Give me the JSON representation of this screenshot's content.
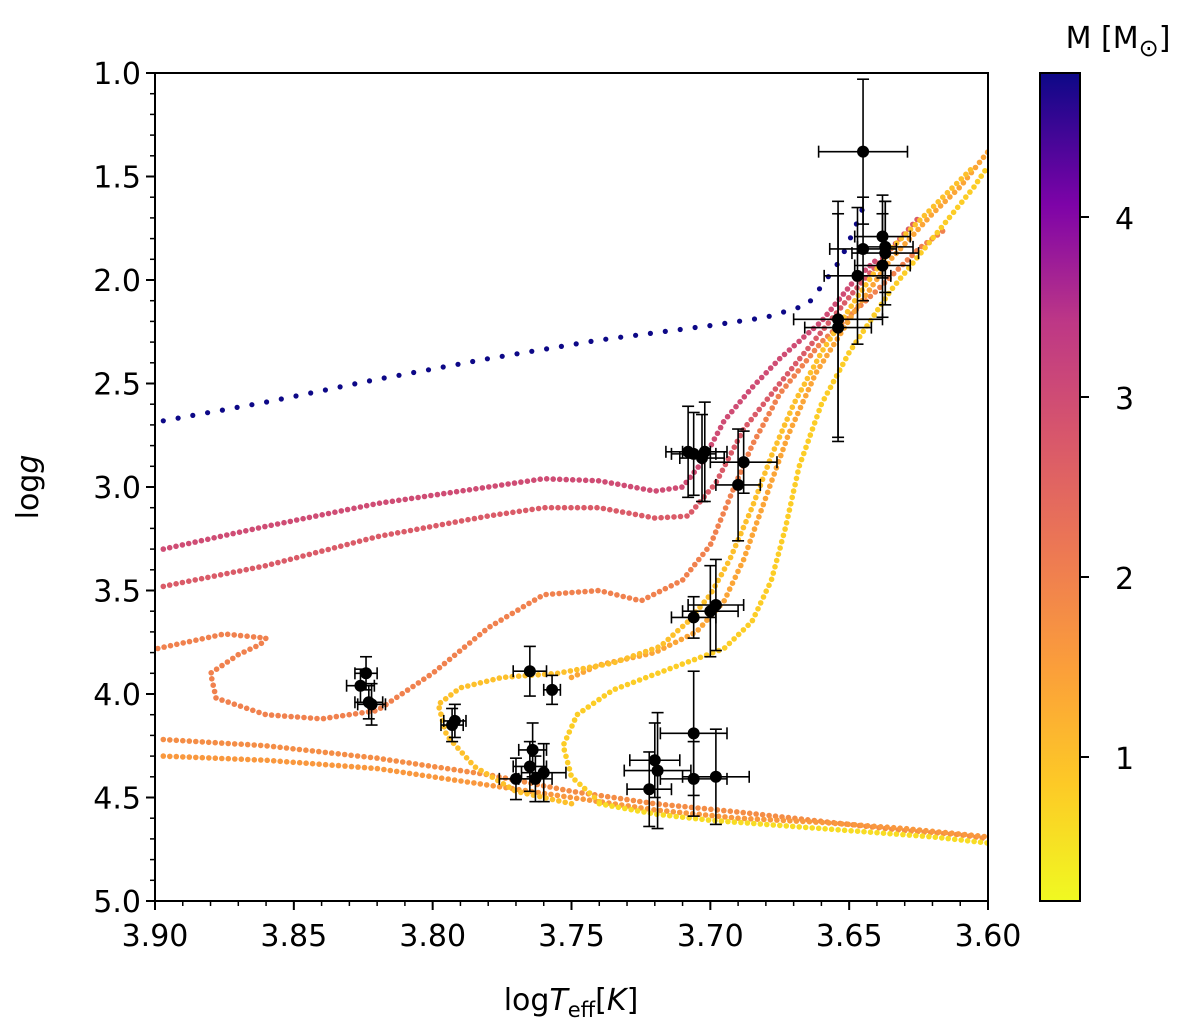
{
  "chart_data": {
    "type": "scatter",
    "title": "",
    "xlabel": "logT_eff[K]",
    "xlabel_parts": {
      "base": "log",
      "var": "T",
      "sub": "eff",
      "unit": "K"
    },
    "ylabel": "log g",
    "ylabel_parts": {
      "base": "log",
      "var": "g"
    },
    "xlim": [
      3.9,
      3.6
    ],
    "ylim": [
      1.0,
      5.0
    ],
    "x_axis_inverted": true,
    "y_axis_inverted": true,
    "x_ticks": [
      3.9,
      3.85,
      3.8,
      3.75,
      3.7,
      3.65,
      3.6
    ],
    "x_tick_labels": [
      "3.90",
      "3.85",
      "3.80",
      "3.75",
      "3.70",
      "3.65",
      "3.60"
    ],
    "y_ticks": [
      1.0,
      1.5,
      2.0,
      2.5,
      3.0,
      3.5,
      4.0,
      4.5,
      5.0
    ],
    "y_tick_labels": [
      "1.0",
      "1.5",
      "2.0",
      "2.5",
      "3.0",
      "3.5",
      "4.0",
      "4.5",
      "5.0"
    ],
    "grid": false,
    "colorbar": {
      "label": "M [M⊙]",
      "label_parts": {
        "text": "M [M",
        "symbol": "⊙",
        "close": "]"
      },
      "colormap": "plasma_r",
      "range": [
        0.2,
        4.8
      ],
      "ticks": [
        1,
        2,
        3,
        4
      ],
      "tick_labels": [
        "1",
        "2",
        "3",
        "4"
      ]
    },
    "tracks": [
      {
        "name": "track-4.8",
        "mass": 4.8,
        "points": [
          [
            3.897,
            2.68
          ],
          [
            3.86,
            2.59
          ],
          [
            3.82,
            2.48
          ],
          [
            3.78,
            2.38
          ],
          [
            3.74,
            2.29
          ],
          [
            3.7,
            2.22
          ],
          [
            3.68,
            2.18
          ],
          [
            3.665,
            2.12
          ],
          [
            3.66,
            2.03
          ],
          [
            3.653,
            1.9
          ],
          [
            3.648,
            1.75
          ],
          [
            3.645,
            1.65
          ]
        ]
      },
      {
        "name": "track-3.0",
        "mass": 3.0,
        "points": [
          [
            3.897,
            3.3
          ],
          [
            3.86,
            3.19
          ],
          [
            3.82,
            3.08
          ],
          [
            3.78,
            3.0
          ],
          [
            3.76,
            2.96
          ],
          [
            3.74,
            2.97
          ],
          [
            3.72,
            3.02
          ],
          [
            3.71,
            3.0
          ],
          [
            3.703,
            2.88
          ],
          [
            3.695,
            2.68
          ],
          [
            3.685,
            2.52
          ],
          [
            3.675,
            2.38
          ],
          [
            3.66,
            2.2
          ],
          [
            3.648,
            2.0
          ],
          [
            3.64,
            1.9
          ]
        ]
      },
      {
        "name": "track-2.7",
        "mass": 2.7,
        "points": [
          [
            3.897,
            3.48
          ],
          [
            3.86,
            3.38
          ],
          [
            3.82,
            3.24
          ],
          [
            3.78,
            3.14
          ],
          [
            3.76,
            3.1
          ],
          [
            3.74,
            3.1
          ],
          [
            3.72,
            3.15
          ],
          [
            3.708,
            3.14
          ],
          [
            3.698,
            2.98
          ],
          [
            3.688,
            2.72
          ],
          [
            3.675,
            2.5
          ],
          [
            3.66,
            2.25
          ],
          [
            3.648,
            2.05
          ],
          [
            3.635,
            1.85
          ],
          [
            3.625,
            1.7
          ]
        ]
      },
      {
        "name": "track-2.0",
        "mass": 2.0,
        "points": [
          [
            3.899,
            3.78
          ],
          [
            3.875,
            3.71
          ],
          [
            3.86,
            3.73
          ],
          [
            3.862,
            3.76
          ],
          [
            3.87,
            3.81
          ],
          [
            3.88,
            3.9
          ],
          [
            3.878,
            4.02
          ],
          [
            3.86,
            4.1
          ],
          [
            3.84,
            4.12
          ],
          [
            3.82,
            4.08
          ],
          [
            3.8,
            3.9
          ],
          [
            3.78,
            3.68
          ],
          [
            3.76,
            3.52
          ],
          [
            3.74,
            3.5
          ],
          [
            3.725,
            3.55
          ],
          [
            3.71,
            3.45
          ],
          [
            3.7,
            3.28
          ],
          [
            3.692,
            3.02
          ],
          [
            3.685,
            2.8
          ],
          [
            3.675,
            2.55
          ],
          [
            3.66,
            2.3
          ],
          [
            3.64,
            2.05
          ],
          [
            3.625,
            1.85
          ],
          [
            3.615,
            1.75
          ]
        ]
      },
      {
        "name": "track-1.4",
        "mass": 1.4,
        "points": [
          [
            3.75,
            3.92
          ],
          [
            3.74,
            3.86
          ],
          [
            3.72,
            3.8
          ],
          [
            3.705,
            3.7
          ],
          [
            3.695,
            3.55
          ],
          [
            3.688,
            3.35
          ],
          [
            3.68,
            3.05
          ],
          [
            3.672,
            2.75
          ],
          [
            3.662,
            2.45
          ],
          [
            3.648,
            2.15
          ],
          [
            3.635,
            1.9
          ],
          [
            3.62,
            1.68
          ],
          [
            3.61,
            1.55
          ],
          [
            3.6,
            1.38
          ]
        ]
      },
      {
        "name": "zams-1.8",
        "mass": 1.8,
        "points": [
          [
            3.897,
            4.22
          ],
          [
            3.86,
            4.25
          ],
          [
            3.82,
            4.31
          ],
          [
            3.78,
            4.39
          ],
          [
            3.75,
            4.47
          ],
          [
            3.72,
            4.53
          ],
          [
            3.69,
            4.57
          ],
          [
            3.67,
            4.6
          ],
          [
            3.65,
            4.63
          ],
          [
            3.63,
            4.66
          ],
          [
            3.61,
            4.68
          ],
          [
            3.6,
            4.7
          ]
        ]
      },
      {
        "name": "zams-1.6",
        "mass": 1.6,
        "points": [
          [
            3.897,
            4.3
          ],
          [
            3.86,
            4.32
          ],
          [
            3.82,
            4.36
          ],
          [
            3.78,
            4.44
          ],
          [
            3.75,
            4.5
          ],
          [
            3.72,
            4.56
          ],
          [
            3.69,
            4.6
          ],
          [
            3.66,
            4.62
          ],
          [
            3.63,
            4.65
          ],
          [
            3.6,
            4.69
          ]
        ]
      },
      {
        "name": "track-1.0",
        "mass": 1.0,
        "points": [
          [
            3.75,
            4.53
          ],
          [
            3.77,
            4.47
          ],
          [
            3.785,
            4.35
          ],
          [
            3.795,
            4.2
          ],
          [
            3.798,
            4.05
          ],
          [
            3.79,
            3.97
          ],
          [
            3.775,
            3.92
          ],
          [
            3.755,
            3.9
          ],
          [
            3.735,
            3.85
          ],
          [
            3.718,
            3.77
          ],
          [
            3.708,
            3.65
          ],
          [
            3.7,
            3.52
          ],
          [
            3.693,
            3.35
          ],
          [
            3.685,
            3.1
          ],
          [
            3.678,
            2.85
          ],
          [
            3.67,
            2.6
          ],
          [
            3.66,
            2.35
          ],
          [
            3.648,
            2.1
          ],
          [
            3.635,
            1.85
          ],
          [
            3.62,
            1.65
          ],
          [
            3.605,
            1.45
          ]
        ]
      },
      {
        "name": "track-0.8",
        "mass": 0.8,
        "points": [
          [
            3.74,
            4.52
          ],
          [
            3.75,
            4.4
          ],
          [
            3.753,
            4.25
          ],
          [
            3.748,
            4.1
          ],
          [
            3.735,
            3.98
          ],
          [
            3.715,
            3.88
          ],
          [
            3.695,
            3.78
          ],
          [
            3.685,
            3.65
          ],
          [
            3.678,
            3.45
          ],
          [
            3.673,
            3.2
          ],
          [
            3.668,
            2.9
          ],
          [
            3.66,
            2.6
          ],
          [
            3.65,
            2.35
          ],
          [
            3.635,
            2.05
          ],
          [
            3.62,
            1.8
          ],
          [
            3.605,
            1.55
          ],
          [
            3.6,
            1.45
          ]
        ]
      },
      {
        "name": "zams-0.6",
        "mass": 0.6,
        "points": [
          [
            3.74,
            4.53
          ],
          [
            3.72,
            4.58
          ],
          [
            3.7,
            4.61
          ],
          [
            3.68,
            4.63
          ],
          [
            3.66,
            4.65
          ],
          [
            3.64,
            4.67
          ],
          [
            3.62,
            4.69
          ],
          [
            3.6,
            4.72
          ]
        ]
      }
    ],
    "stars": [
      {
        "x": 3.645,
        "y": 1.38,
        "xerr": 0.016,
        "yerr": 0.35
      },
      {
        "x": 3.654,
        "y": 2.19,
        "xerr": 0.016,
        "yerr": 0.57
      },
      {
        "x": 3.654,
        "y": 2.23,
        "xerr": 0.012,
        "yerr": 0.55
      },
      {
        "x": 3.647,
        "y": 1.98,
        "xerr": 0.012,
        "yerr": 0.33
      },
      {
        "x": 3.645,
        "y": 1.85,
        "xerr": 0.012,
        "yerr": 0.25
      },
      {
        "x": 3.638,
        "y": 1.79,
        "xerr": 0.01,
        "yerr": 0.2
      },
      {
        "x": 3.637,
        "y": 1.84,
        "xerr": 0.01,
        "yerr": 0.22
      },
      {
        "x": 3.637,
        "y": 1.87,
        "xerr": 0.012,
        "yerr": 0.25
      },
      {
        "x": 3.638,
        "y": 1.93,
        "xerr": 0.01,
        "yerr": 0.25
      },
      {
        "x": 3.708,
        "y": 2.83,
        "xerr": 0.008,
        "yerr": 0.22
      },
      {
        "x": 3.706,
        "y": 2.84,
        "xerr": 0.008,
        "yerr": 0.2
      },
      {
        "x": 3.703,
        "y": 2.86,
        "xerr": 0.008,
        "yerr": 0.21
      },
      {
        "x": 3.702,
        "y": 2.83,
        "xerr": 0.008,
        "yerr": 0.24
      },
      {
        "x": 3.69,
        "y": 2.99,
        "xerr": 0.008,
        "yerr": 0.27
      },
      {
        "x": 3.688,
        "y": 2.88,
        "xerr": 0.012,
        "yerr": 0.15
      },
      {
        "x": 3.706,
        "y": 3.63,
        "xerr": 0.008,
        "yerr": 0.1
      },
      {
        "x": 3.7,
        "y": 3.6,
        "xerr": 0.01,
        "yerr": 0.22
      },
      {
        "x": 3.698,
        "y": 3.57,
        "xerr": 0.01,
        "yerr": 0.22
      },
      {
        "x": 3.826,
        "y": 3.96,
        "xerr": 0.005,
        "yerr": 0.08
      },
      {
        "x": 3.824,
        "y": 3.9,
        "xerr": 0.004,
        "yerr": 0.08
      },
      {
        "x": 3.823,
        "y": 4.04,
        "xerr": 0.005,
        "yerr": 0.08
      },
      {
        "x": 3.822,
        "y": 4.05,
        "xerr": 0.005,
        "yerr": 0.1
      },
      {
        "x": 3.793,
        "y": 4.15,
        "xerr": 0.004,
        "yerr": 0.08
      },
      {
        "x": 3.792,
        "y": 4.13,
        "xerr": 0.004,
        "yerr": 0.08
      },
      {
        "x": 3.765,
        "y": 3.89,
        "xerr": 0.006,
        "yerr": 0.12
      },
      {
        "x": 3.757,
        "y": 3.98,
        "xerr": 0.003,
        "yerr": 0.07
      },
      {
        "x": 3.77,
        "y": 4.41,
        "xerr": 0.006,
        "yerr": 0.1
      },
      {
        "x": 3.765,
        "y": 4.35,
        "xerr": 0.006,
        "yerr": 0.12
      },
      {
        "x": 3.764,
        "y": 4.27,
        "xerr": 0.005,
        "yerr": 0.13
      },
      {
        "x": 3.763,
        "y": 4.41,
        "xerr": 0.006,
        "yerr": 0.11
      },
      {
        "x": 3.76,
        "y": 4.38,
        "xerr": 0.008,
        "yerr": 0.14
      },
      {
        "x": 3.72,
        "y": 4.32,
        "xerr": 0.009,
        "yerr": 0.18
      },
      {
        "x": 3.719,
        "y": 4.37,
        "xerr": 0.012,
        "yerr": 0.28
      },
      {
        "x": 3.722,
        "y": 4.46,
        "xerr": 0.008,
        "yerr": 0.18
      },
      {
        "x": 3.706,
        "y": 4.19,
        "xerr": 0.012,
        "yerr": 0.3
      },
      {
        "x": 3.706,
        "y": 4.41,
        "xerr": 0.012,
        "yerr": 0.18
      },
      {
        "x": 3.698,
        "y": 4.4,
        "xerr": 0.012,
        "yerr": 0.23
      }
    ]
  }
}
